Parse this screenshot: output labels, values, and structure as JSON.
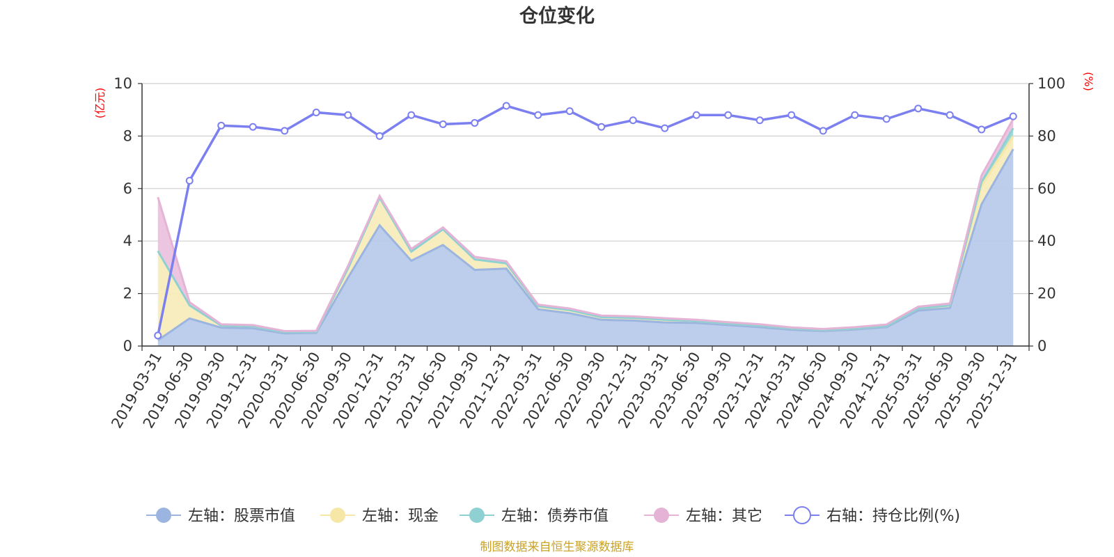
{
  "chart_data": {
    "type": "area",
    "title": "仓位变化",
    "left_axis": {
      "unit": "(亿元)",
      "range": [
        0,
        10
      ],
      "ticks": [
        "0",
        "2",
        "4",
        "6",
        "8",
        "10"
      ]
    },
    "right_axis": {
      "unit": "(%)",
      "range": [
        0,
        100
      ],
      "ticks": [
        "0",
        "20",
        "40",
        "60",
        "80",
        "100"
      ]
    },
    "categories": [
      "2019-03-31",
      "2019-06-30",
      "2019-09-30",
      "2019-12-31",
      "2020-03-31",
      "2020-06-30",
      "2020-09-30",
      "2020-12-31",
      "2021-03-31",
      "2021-06-30",
      "2021-09-30",
      "2021-12-31",
      "2022-03-31",
      "2022-06-30",
      "2022-09-30",
      "2022-12-31",
      "2023-03-31",
      "2023-06-30",
      "2023-09-30",
      "2023-12-31",
      "2024-03-31",
      "2024-06-30",
      "2024-09-30",
      "2024-12-31",
      "2025-03-31",
      "2025-06-30",
      "2025-09-30",
      "2025-12-31"
    ],
    "series": [
      {
        "name": "左轴：股票市值",
        "axis": "left",
        "color": "#9bb5e0",
        "fill": "#b8cbea",
        "values": [
          0.22,
          1.05,
          0.7,
          0.68,
          0.48,
          0.5,
          2.6,
          4.6,
          3.25,
          3.85,
          2.9,
          2.95,
          1.4,
          1.25,
          1.0,
          0.97,
          0.9,
          0.88,
          0.8,
          0.72,
          0.62,
          0.57,
          0.63,
          0.72,
          1.35,
          1.45,
          5.4,
          7.5
        ]
      },
      {
        "name": "左轴：现金",
        "axis": "left",
        "color": "#f6e7a6",
        "fill": "#f7ecbb",
        "values": [
          3.4,
          0.5,
          0.08,
          0.07,
          0.05,
          0.04,
          0.35,
          1.05,
          0.35,
          0.6,
          0.4,
          0.2,
          0.12,
          0.12,
          0.1,
          0.1,
          0.1,
          0.07,
          0.06,
          0.06,
          0.05,
          0.04,
          0.04,
          0.04,
          0.08,
          0.1,
          0.7,
          0.5
        ]
      },
      {
        "name": "左轴：债券市值",
        "axis": "left",
        "color": "#8fd0d2",
        "fill": "#9fd7d7",
        "values": [
          0.0,
          0.0,
          0.0,
          0.0,
          0.0,
          0.0,
          0.0,
          0.0,
          0.0,
          0.0,
          0.0,
          0.0,
          0.0,
          0.0,
          0.0,
          0.0,
          0.0,
          0.0,
          0.0,
          0.0,
          0.0,
          0.0,
          0.0,
          0.0,
          0.0,
          0.0,
          0.15,
          0.3
        ]
      },
      {
        "name": "左轴：其它",
        "axis": "left",
        "color": "#e5b3d6",
        "fill": "#ebc3df",
        "values": [
          2.05,
          0.12,
          0.05,
          0.05,
          0.04,
          0.04,
          0.1,
          0.07,
          0.1,
          0.07,
          0.1,
          0.08,
          0.06,
          0.06,
          0.06,
          0.06,
          0.06,
          0.05,
          0.05,
          0.05,
          0.04,
          0.04,
          0.05,
          0.06,
          0.07,
          0.07,
          0.25,
          0.35
        ]
      },
      {
        "name": "右轴：持仓比例(%)",
        "axis": "right",
        "color": "#7b7ff0",
        "values": [
          4,
          63,
          84,
          83.5,
          82,
          89,
          88,
          80,
          88,
          84.5,
          85,
          91.5,
          88,
          89.5,
          83.5,
          86,
          83,
          88,
          88,
          86,
          88,
          82,
          88,
          86.5,
          90.5,
          88,
          82.5,
          87.5
        ]
      }
    ]
  },
  "footer": {
    "source": "制图数据来自恒生聚源数据库"
  }
}
